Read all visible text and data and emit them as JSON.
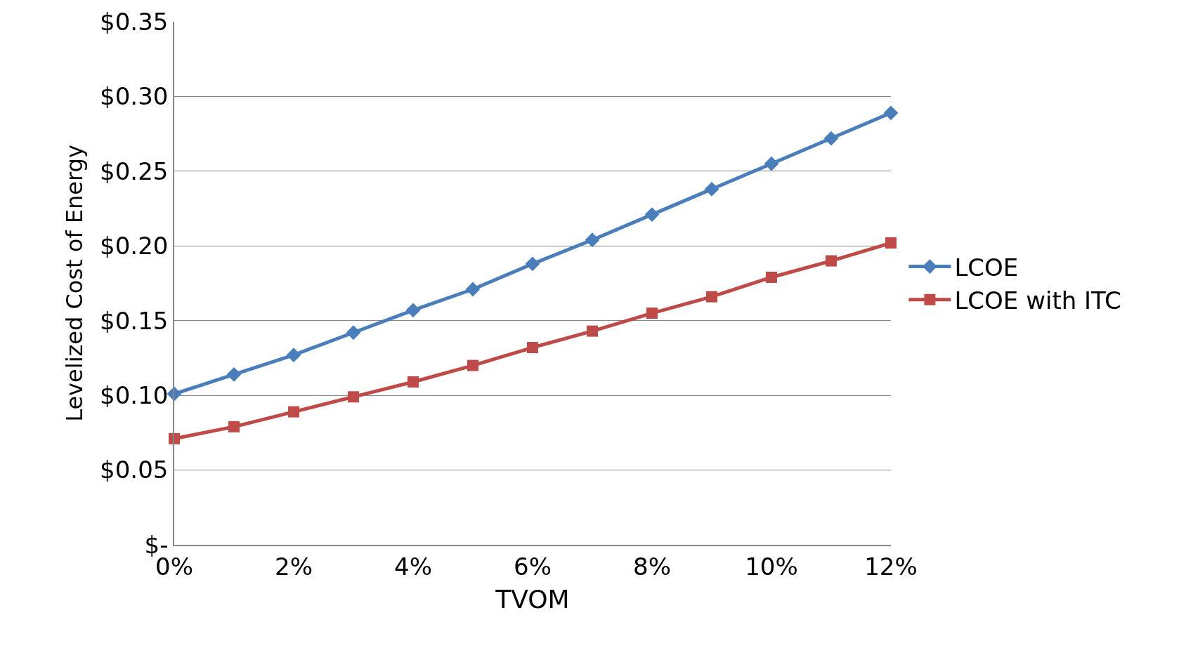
{
  "chart_data": {
    "type": "line",
    "xlabel": "TVOM",
    "ylabel": "Levelized Cost of Energy",
    "x": [
      0,
      1,
      2,
      3,
      4,
      5,
      6,
      7,
      8,
      9,
      10,
      11,
      12
    ],
    "series": [
      {
        "name": "LCOE",
        "color": "#4a7ebb",
        "marker": "diamond",
        "values": [
          0.101,
          0.114,
          0.127,
          0.142,
          0.157,
          0.171,
          0.188,
          0.204,
          0.221,
          0.238,
          0.255,
          0.272,
          0.289
        ]
      },
      {
        "name": "LCOE with ITC",
        "color": "#be4b48",
        "marker": "square",
        "values": [
          0.071,
          0.079,
          0.089,
          0.099,
          0.109,
          0.12,
          0.132,
          0.143,
          0.155,
          0.166,
          0.179,
          0.19,
          0.202
        ]
      }
    ],
    "xlim": [
      0,
      12
    ],
    "xticks": [
      {
        "value": 0,
        "label": "0%"
      },
      {
        "value": 2,
        "label": "2%"
      },
      {
        "value": 4,
        "label": "4%"
      },
      {
        "value": 6,
        "label": "6%"
      },
      {
        "value": 8,
        "label": "8%"
      },
      {
        "value": 10,
        "label": "10%"
      },
      {
        "value": 12,
        "label": "12%"
      }
    ],
    "ylim": [
      0,
      0.35
    ],
    "yticks": [
      {
        "value": 0,
        "label": "$-"
      },
      {
        "value": 0.05,
        "label": "$0.05"
      },
      {
        "value": 0.1,
        "label": "$0.10"
      },
      {
        "value": 0.15,
        "label": "$0.15"
      },
      {
        "value": 0.2,
        "label": "$0.20"
      },
      {
        "value": 0.25,
        "label": "$0.25"
      },
      {
        "value": 0.3,
        "label": "$0.30"
      },
      {
        "value": 0.35,
        "label": "$0.35"
      }
    ],
    "grid": "y",
    "legend": "right",
    "line_style": "solid"
  }
}
